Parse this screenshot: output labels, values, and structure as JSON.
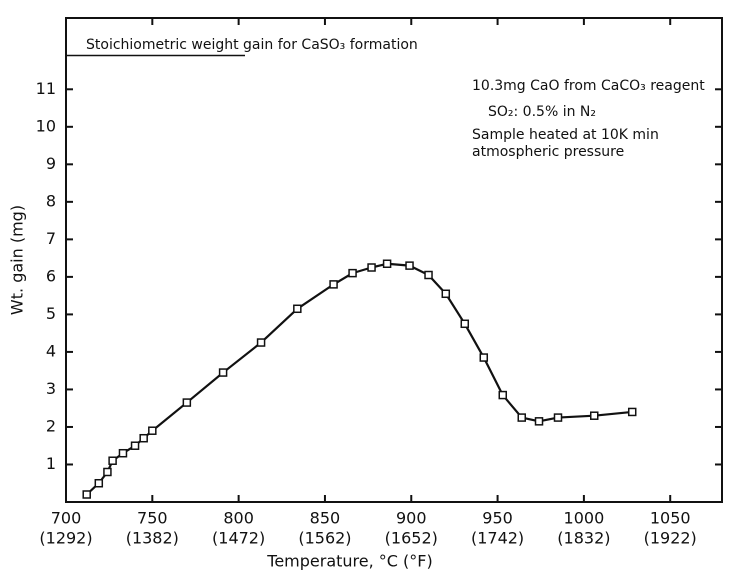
{
  "chart_data": {
    "type": "line",
    "x_label": "Temperature, °C (°F)",
    "y_label": "Wt. gain (mg)",
    "annotations": [
      "Stoichiometric weight gain for CaSO₃ formation",
      "10.3mg CaO from CaCO₃ reagent",
      "SO₂:  0.5% in N₂",
      "Sample heated at 10K min",
      "atmospheric pressure"
    ],
    "x": [
      712,
      719,
      724,
      727,
      733,
      740,
      745,
      750,
      770,
      791,
      813,
      834,
      855,
      866,
      877,
      886,
      899,
      910,
      920,
      931,
      942,
      953,
      964,
      974,
      985,
      1006,
      1028
    ],
    "series": [
      {
        "name": "Wt. gain",
        "color": "#111111",
        "values": [
          0.2,
          0.5,
          0.8,
          1.1,
          1.3,
          1.5,
          1.7,
          1.9,
          2.65,
          3.45,
          4.25,
          5.15,
          5.8,
          6.1,
          6.25,
          6.35,
          6.3,
          6.05,
          5.55,
          4.75,
          3.85,
          2.85,
          2.25,
          2.15,
          2.25,
          2.3,
          2.4
        ]
      }
    ],
    "xlim": [
      700,
      1080
    ],
    "ylim": [
      0,
      12.9
    ],
    "xticks": [
      700,
      750,
      800,
      850,
      900,
      950,
      1000,
      1050
    ],
    "xtick_labels_f": [
      "(1292)",
      "(1382)",
      "(1472)",
      "(1562)",
      "(1652)",
      "(1742)",
      "(1832)",
      "(1922)"
    ],
    "yticks": [
      1,
      2,
      3,
      4,
      5,
      6,
      7,
      8,
      9,
      10,
      11
    ],
    "stoichiometric_level": 11.9,
    "grid": false
  }
}
